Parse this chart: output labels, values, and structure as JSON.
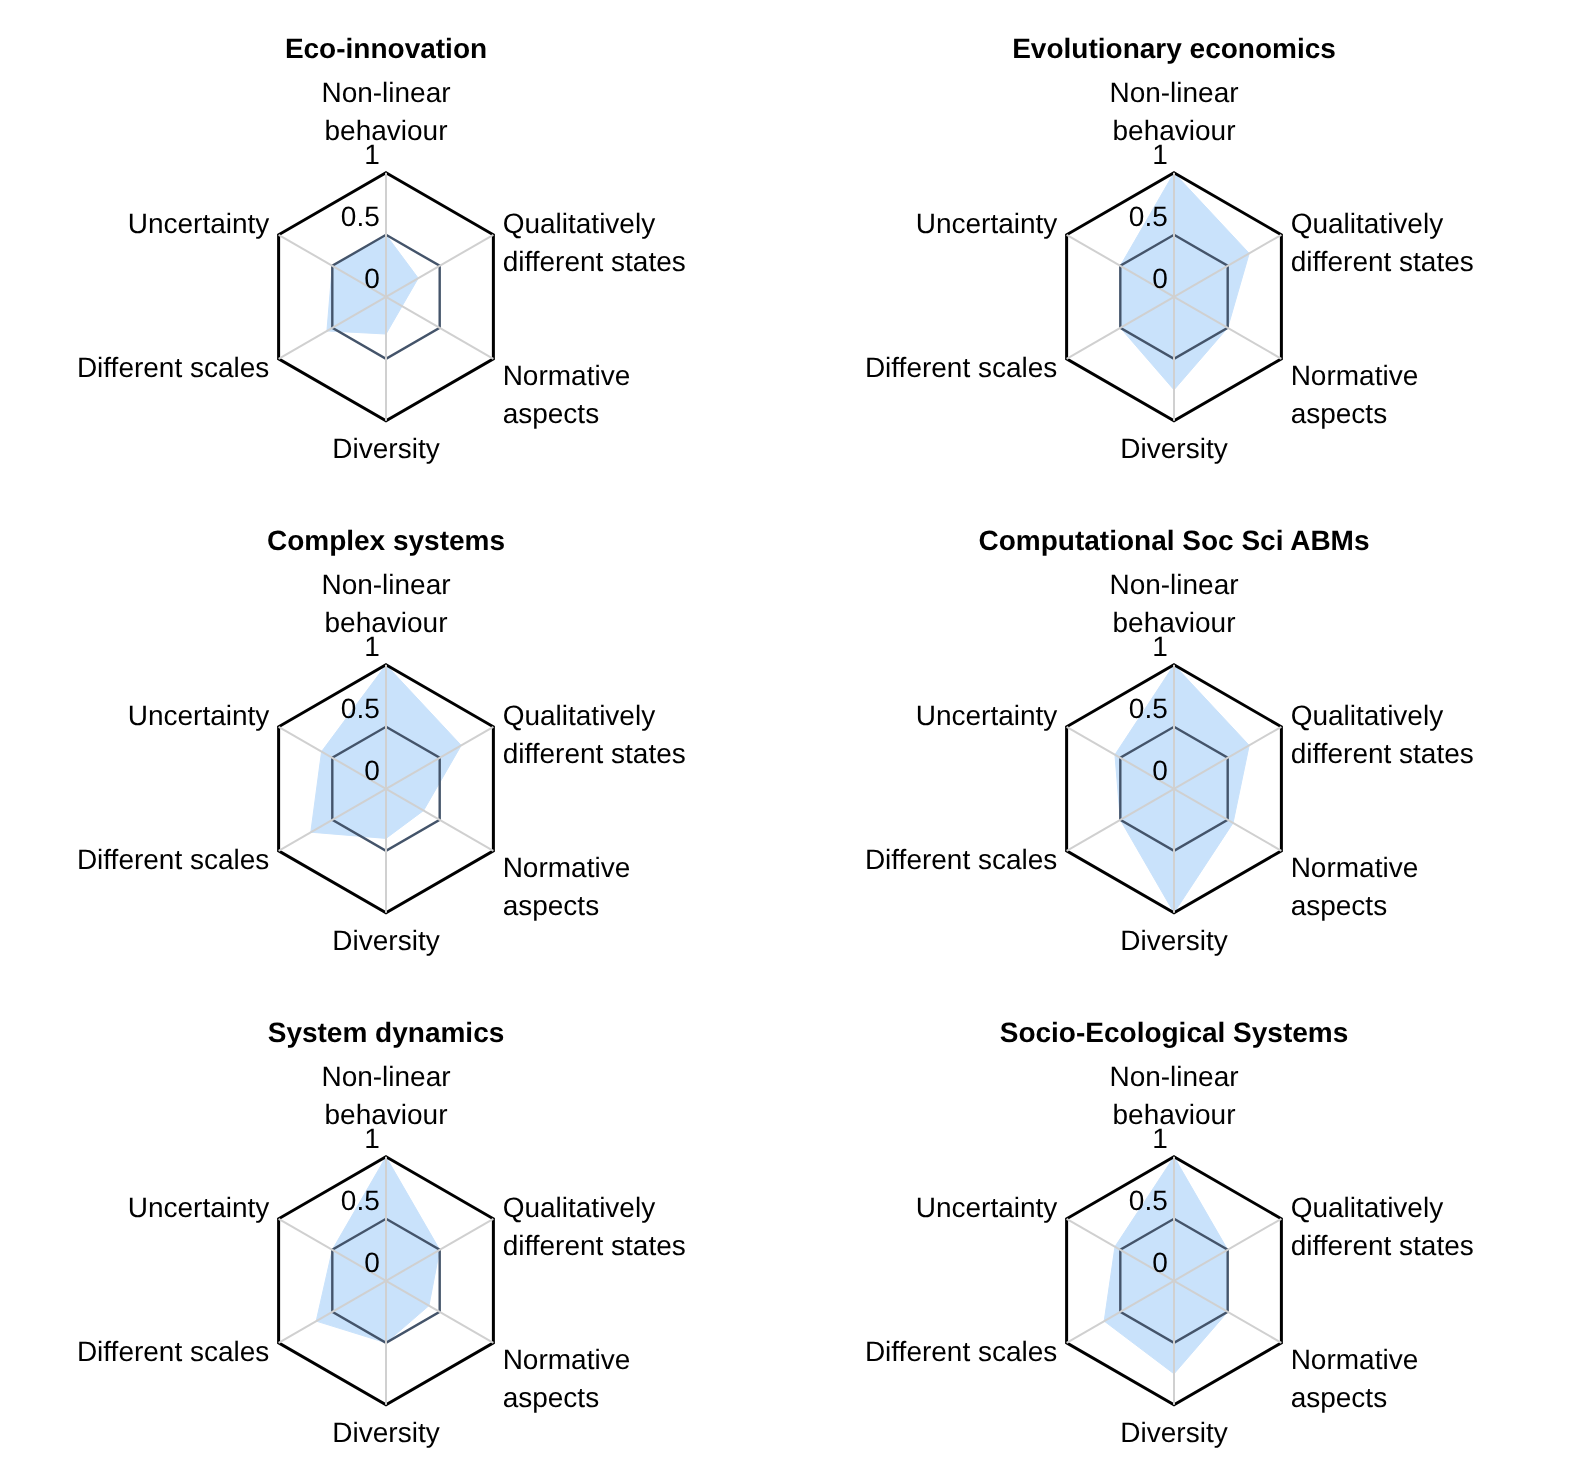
{
  "chart_data": [
    {
      "type": "radar",
      "title": "Eco-innovation",
      "categories": [
        "Non-linear behaviour",
        "Qualitatively different states",
        "Normative aspects",
        "Diversity",
        "Different scales",
        "Uncertainty"
      ],
      "series": [
        {
          "color": "#c9e2fb",
          "values": [
            0.5,
            0.3,
            0.15,
            0.3,
            0.55,
            0.5
          ]
        }
      ],
      "ylim": [
        0,
        1
      ],
      "yticks": [
        0,
        0.5,
        1
      ],
      "grid": true
    },
    {
      "type": "radar",
      "title": "Evolutionary economics",
      "categories": [
        "Non-linear behaviour",
        "Qualitatively different states",
        "Normative aspects",
        "Diversity",
        "Different scales",
        "Uncertainty"
      ],
      "series": [
        {
          "color": "#c9e2fb",
          "values": [
            1,
            0.7,
            0.5,
            0.75,
            0.5,
            0.5
          ]
        }
      ],
      "ylim": [
        0,
        1
      ],
      "yticks": [
        0,
        0.5,
        1
      ],
      "grid": true
    },
    {
      "type": "radar",
      "title": "Complex systems",
      "categories": [
        "Non-linear behaviour",
        "Qualitatively different states",
        "Normative aspects",
        "Diversity",
        "Different scales",
        "Uncertainty"
      ],
      "series": [
        {
          "color": "#c9e2fb",
          "values": [
            1,
            0.7,
            0.35,
            0.4,
            0.7,
            0.6
          ]
        }
      ],
      "ylim": [
        0,
        1
      ],
      "yticks": [
        0,
        0.5,
        1
      ],
      "grid": true
    },
    {
      "type": "radar",
      "title": "Computational Soc Sci ABMs",
      "categories": [
        "Non-linear behaviour",
        "Qualitatively different states",
        "Normative aspects",
        "Diversity",
        "Different scales",
        "Uncertainty"
      ],
      "series": [
        {
          "color": "#c9e2fb",
          "values": [
            1,
            0.7,
            0.55,
            1,
            0.5,
            0.55
          ]
        }
      ],
      "ylim": [
        0,
        1
      ],
      "yticks": [
        0,
        0.5,
        1
      ],
      "grid": true
    },
    {
      "type": "radar",
      "title": "System dynamics",
      "categories": [
        "Non-linear behaviour",
        "Qualitatively different states",
        "Normative aspects",
        "Diversity",
        "Different scales",
        "Uncertainty"
      ],
      "series": [
        {
          "color": "#c9e2fb",
          "values": [
            1,
            0.5,
            0.4,
            0.5,
            0.65,
            0.5
          ]
        }
      ],
      "ylim": [
        0,
        1
      ],
      "yticks": [
        0,
        0.5,
        1
      ],
      "grid": true
    },
    {
      "type": "radar",
      "title": "Socio-Ecological Systems",
      "categories": [
        "Non-linear behaviour",
        "Qualitatively different states",
        "Normative aspects",
        "Diversity",
        "Different scales",
        "Uncertainty"
      ],
      "series": [
        {
          "color": "#c9e2fb",
          "values": [
            1,
            0.5,
            0.5,
            0.75,
            0.65,
            0.55
          ]
        }
      ],
      "ylim": [
        0,
        1
      ],
      "yticks": [
        0,
        0.5,
        1
      ],
      "grid": true
    }
  ]
}
